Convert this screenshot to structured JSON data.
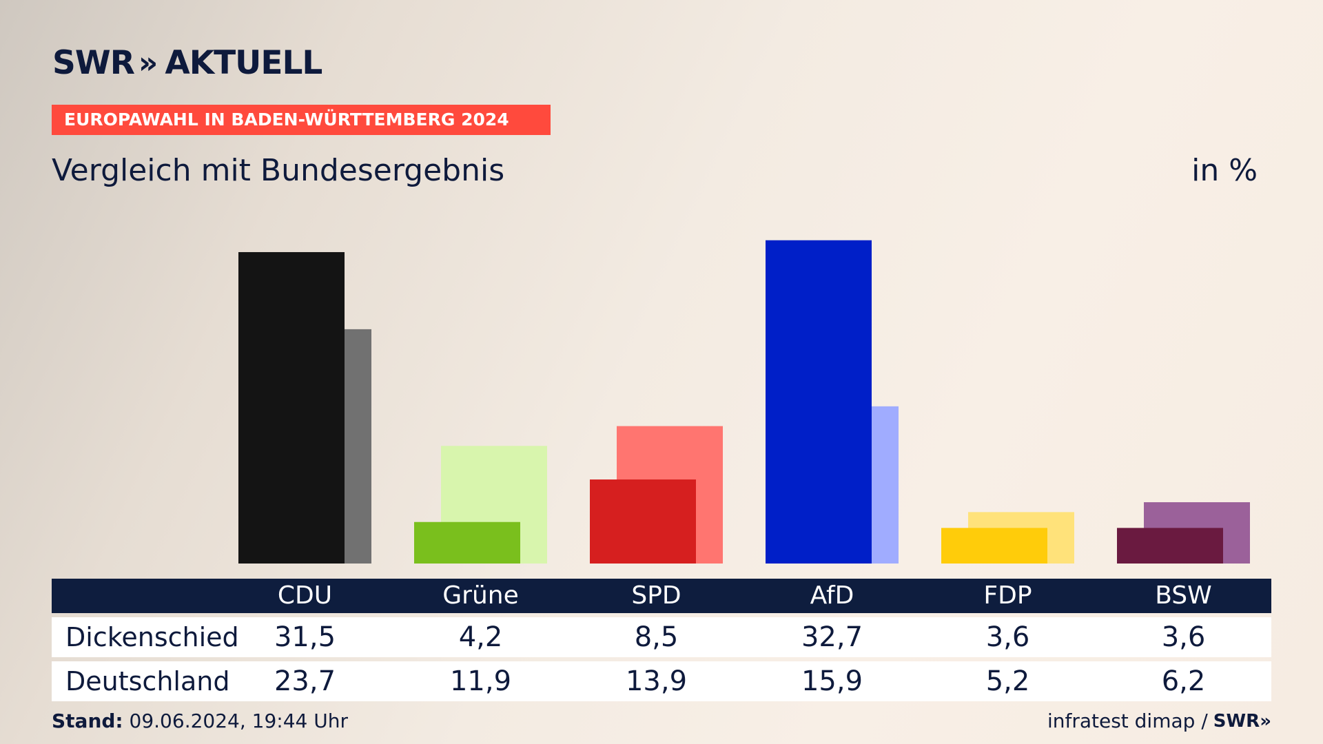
{
  "header": {
    "logo_brand": "SWR",
    "logo_chevrons": "»",
    "logo_product": "AKTUELL",
    "banner": "EUROPAWAHL IN BADEN-WÜRTTEMBERG 2024",
    "subtitle": "Vergleich mit Bundesergebnis",
    "unit": "in %"
  },
  "chart_data": {
    "type": "bar",
    "title": "Vergleich mit Bundesergebnis",
    "unit": "in %",
    "categories": [
      "CDU",
      "Grüne",
      "SPD",
      "AfD",
      "FDP",
      "BSW"
    ],
    "series": [
      {
        "name": "Dickenschied",
        "values": [
          31.5,
          4.2,
          8.5,
          32.7,
          3.6,
          3.6
        ],
        "labels": [
          "31,5",
          "4,2",
          "8,5",
          "32,7",
          "3,6",
          "3,6"
        ]
      },
      {
        "name": "Deutschland",
        "values": [
          23.7,
          11.9,
          13.9,
          15.9,
          5.2,
          6.2
        ],
        "labels": [
          "23,7",
          "11,9",
          "13,9",
          "15,9",
          "5,2",
          "6,2"
        ]
      }
    ],
    "colors": {
      "primary": [
        "#141414",
        "#7abf1d",
        "#d61f1f",
        "#001fc8",
        "#ffcc0a",
        "#6a1a40"
      ],
      "secondary": [
        "#717171",
        "#d8f5ad",
        "#ff7570",
        "#a0acff",
        "#ffe27a",
        "#9b619a"
      ]
    },
    "ylim": [
      0,
      33
    ]
  },
  "footer": {
    "stand_label": "Stand:",
    "stand_value": "09.06.2024, 19:44 Uhr",
    "source": "infratest dimap /",
    "source_logo": "SWR»"
  }
}
